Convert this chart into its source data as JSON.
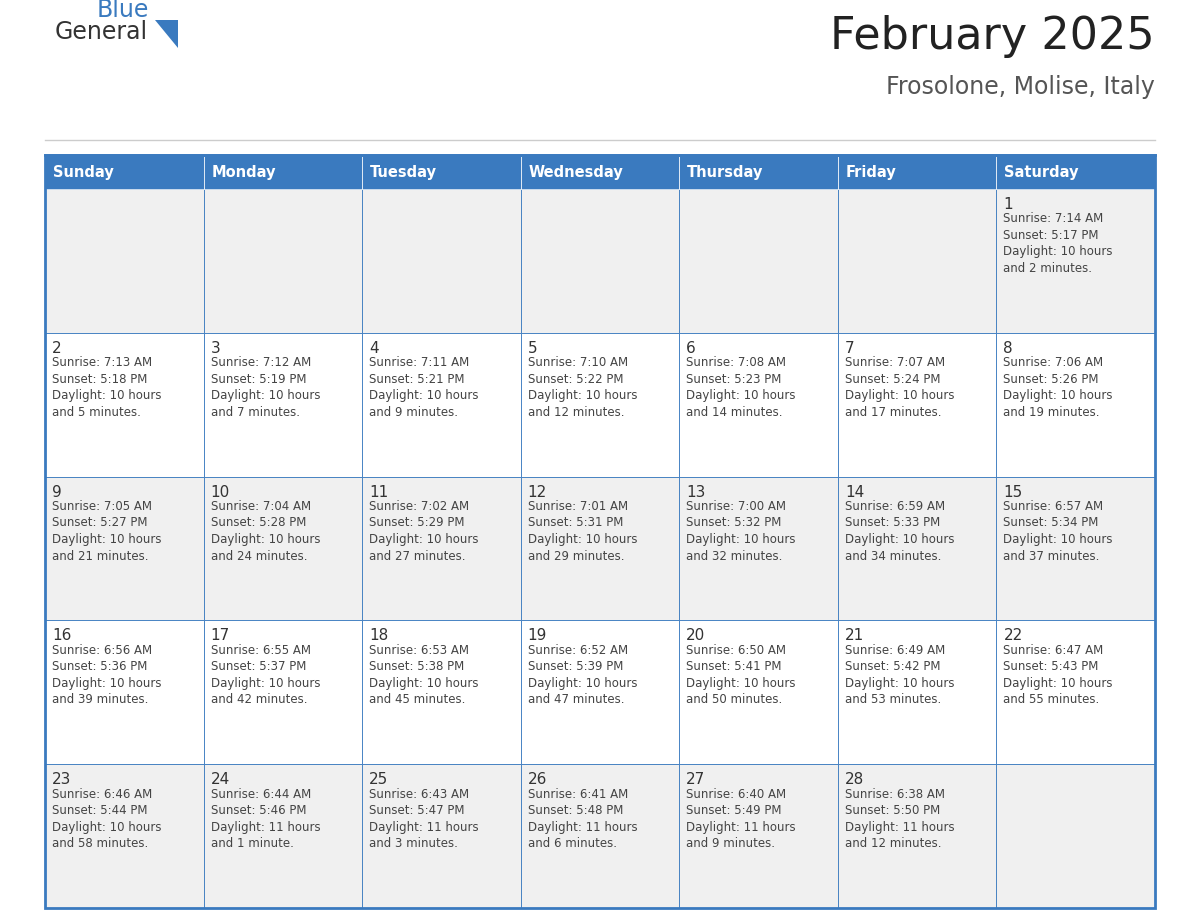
{
  "title": "February 2025",
  "subtitle": "Frosolone, Molise, Italy",
  "header_bg": "#3a7abf",
  "header_text_color": "#FFFFFF",
  "cell_bg_white": "#FFFFFF",
  "cell_bg_gray": "#f0f0f0",
  "border_color": "#3a7abf",
  "text_color": "#444444",
  "day_number_color": "#333333",
  "days_of_week": [
    "Sunday",
    "Monday",
    "Tuesday",
    "Wednesday",
    "Thursday",
    "Friday",
    "Saturday"
  ],
  "weeks": [
    [
      {
        "day": null,
        "info": null
      },
      {
        "day": null,
        "info": null
      },
      {
        "day": null,
        "info": null
      },
      {
        "day": null,
        "info": null
      },
      {
        "day": null,
        "info": null
      },
      {
        "day": null,
        "info": null
      },
      {
        "day": 1,
        "info": "Sunrise: 7:14 AM\nSunset: 5:17 PM\nDaylight: 10 hours\nand 2 minutes."
      }
    ],
    [
      {
        "day": 2,
        "info": "Sunrise: 7:13 AM\nSunset: 5:18 PM\nDaylight: 10 hours\nand 5 minutes."
      },
      {
        "day": 3,
        "info": "Sunrise: 7:12 AM\nSunset: 5:19 PM\nDaylight: 10 hours\nand 7 minutes."
      },
      {
        "day": 4,
        "info": "Sunrise: 7:11 AM\nSunset: 5:21 PM\nDaylight: 10 hours\nand 9 minutes."
      },
      {
        "day": 5,
        "info": "Sunrise: 7:10 AM\nSunset: 5:22 PM\nDaylight: 10 hours\nand 12 minutes."
      },
      {
        "day": 6,
        "info": "Sunrise: 7:08 AM\nSunset: 5:23 PM\nDaylight: 10 hours\nand 14 minutes."
      },
      {
        "day": 7,
        "info": "Sunrise: 7:07 AM\nSunset: 5:24 PM\nDaylight: 10 hours\nand 17 minutes."
      },
      {
        "day": 8,
        "info": "Sunrise: 7:06 AM\nSunset: 5:26 PM\nDaylight: 10 hours\nand 19 minutes."
      }
    ],
    [
      {
        "day": 9,
        "info": "Sunrise: 7:05 AM\nSunset: 5:27 PM\nDaylight: 10 hours\nand 21 minutes."
      },
      {
        "day": 10,
        "info": "Sunrise: 7:04 AM\nSunset: 5:28 PM\nDaylight: 10 hours\nand 24 minutes."
      },
      {
        "day": 11,
        "info": "Sunrise: 7:02 AM\nSunset: 5:29 PM\nDaylight: 10 hours\nand 27 minutes."
      },
      {
        "day": 12,
        "info": "Sunrise: 7:01 AM\nSunset: 5:31 PM\nDaylight: 10 hours\nand 29 minutes."
      },
      {
        "day": 13,
        "info": "Sunrise: 7:00 AM\nSunset: 5:32 PM\nDaylight: 10 hours\nand 32 minutes."
      },
      {
        "day": 14,
        "info": "Sunrise: 6:59 AM\nSunset: 5:33 PM\nDaylight: 10 hours\nand 34 minutes."
      },
      {
        "day": 15,
        "info": "Sunrise: 6:57 AM\nSunset: 5:34 PM\nDaylight: 10 hours\nand 37 minutes."
      }
    ],
    [
      {
        "day": 16,
        "info": "Sunrise: 6:56 AM\nSunset: 5:36 PM\nDaylight: 10 hours\nand 39 minutes."
      },
      {
        "day": 17,
        "info": "Sunrise: 6:55 AM\nSunset: 5:37 PM\nDaylight: 10 hours\nand 42 minutes."
      },
      {
        "day": 18,
        "info": "Sunrise: 6:53 AM\nSunset: 5:38 PM\nDaylight: 10 hours\nand 45 minutes."
      },
      {
        "day": 19,
        "info": "Sunrise: 6:52 AM\nSunset: 5:39 PM\nDaylight: 10 hours\nand 47 minutes."
      },
      {
        "day": 20,
        "info": "Sunrise: 6:50 AM\nSunset: 5:41 PM\nDaylight: 10 hours\nand 50 minutes."
      },
      {
        "day": 21,
        "info": "Sunrise: 6:49 AM\nSunset: 5:42 PM\nDaylight: 10 hours\nand 53 minutes."
      },
      {
        "day": 22,
        "info": "Sunrise: 6:47 AM\nSunset: 5:43 PM\nDaylight: 10 hours\nand 55 minutes."
      }
    ],
    [
      {
        "day": 23,
        "info": "Sunrise: 6:46 AM\nSunset: 5:44 PM\nDaylight: 10 hours\nand 58 minutes."
      },
      {
        "day": 24,
        "info": "Sunrise: 6:44 AM\nSunset: 5:46 PM\nDaylight: 11 hours\nand 1 minute."
      },
      {
        "day": 25,
        "info": "Sunrise: 6:43 AM\nSunset: 5:47 PM\nDaylight: 11 hours\nand 3 minutes."
      },
      {
        "day": 26,
        "info": "Sunrise: 6:41 AM\nSunset: 5:48 PM\nDaylight: 11 hours\nand 6 minutes."
      },
      {
        "day": 27,
        "info": "Sunrise: 6:40 AM\nSunset: 5:49 PM\nDaylight: 11 hours\nand 9 minutes."
      },
      {
        "day": 28,
        "info": "Sunrise: 6:38 AM\nSunset: 5:50 PM\nDaylight: 11 hours\nand 12 minutes."
      },
      {
        "day": null,
        "info": null
      }
    ]
  ],
  "logo_general_color": "#333333",
  "logo_blue_color": "#3a7abf",
  "figsize": [
    11.88,
    9.18
  ],
  "dpi": 100
}
